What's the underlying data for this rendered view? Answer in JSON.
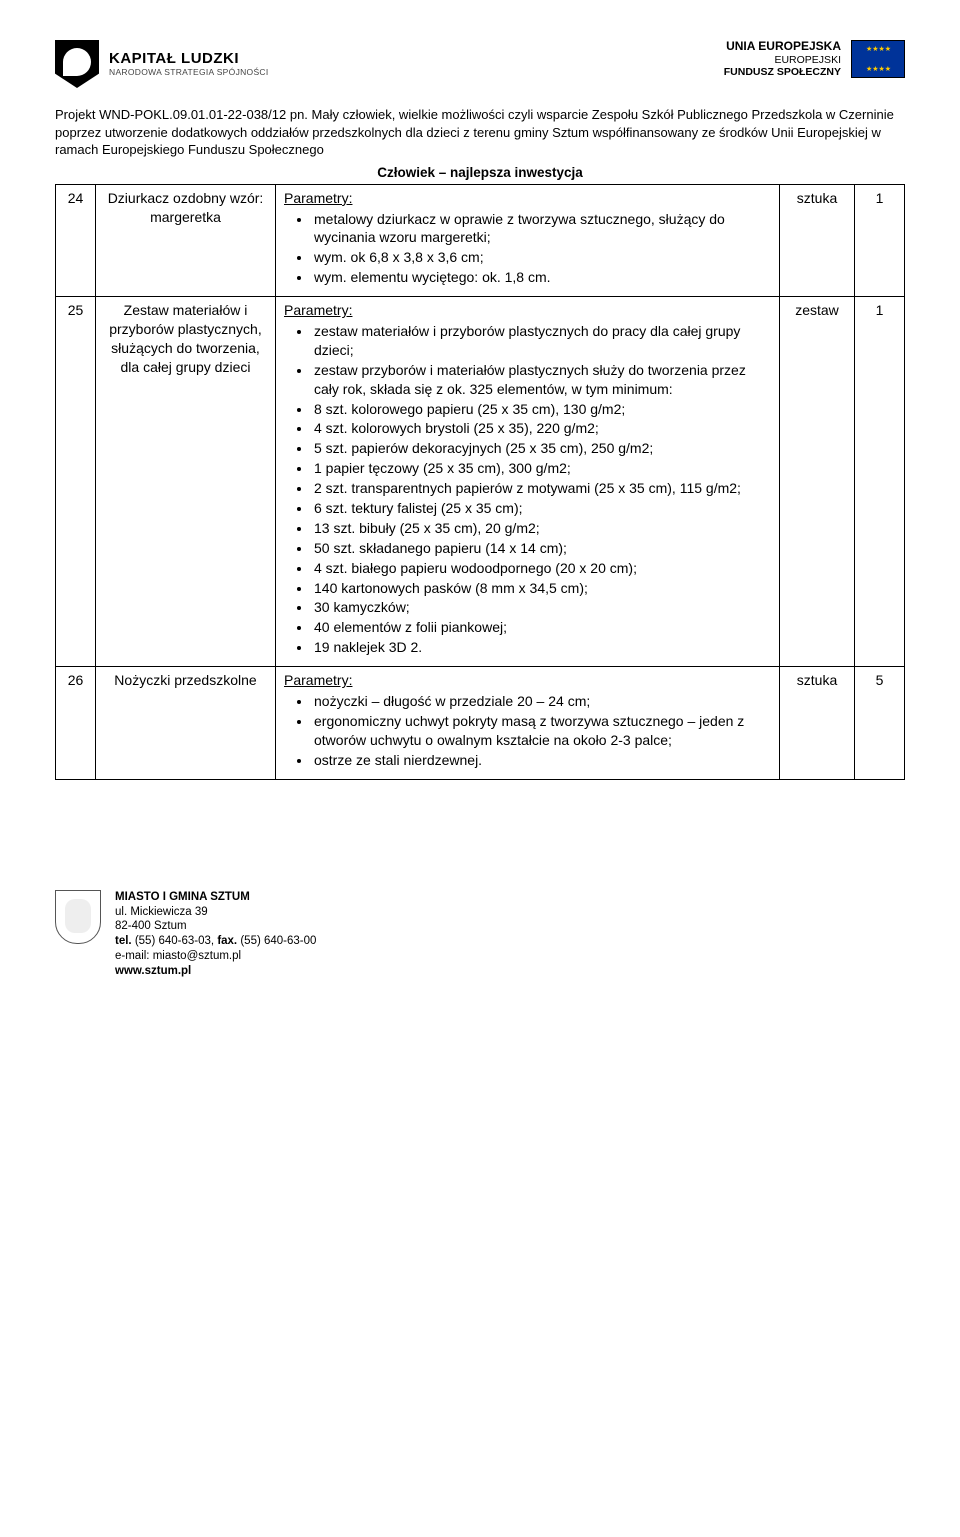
{
  "header": {
    "left": {
      "title": "KAPITAŁ LUDZKI",
      "subtitle": "NARODOWA STRATEGIA SPÓJNOŚCI"
    },
    "right": {
      "line1": "UNIA EUROPEJSKA",
      "line2": "EUROPEJSKI",
      "line3": "FUNDUSZ SPOŁECZNY"
    }
  },
  "intro": {
    "text": "Projekt WND-POKL.09.01.01-22-038/12 pn. Mały człowiek, wielkie możliwości czyli wsparcie Zespołu Szkół Publicznego Przedszkola w Czerninie poprzez utworzenie dodatkowych oddziałów przedszkolnych dla dzieci z terenu gminy Sztum współfinansowany ze środków Unii Europejskiej w ramach Europejskiego Funduszu Społecznego"
  },
  "motto": "Człowiek – najlepsza inwestycja",
  "param_label": "Parametry:",
  "rows": [
    {
      "num": "24",
      "name": "Dziurkacz ozdobny wzór: margeretka",
      "unit": "sztuka",
      "qty": "1",
      "items": [
        "metalowy dziurkacz w oprawie z tworzywa sztucznego, służący do wycinania wzoru margeretki;",
        "wym. ok  6,8 x 3,8 x 3,6 cm;",
        "wym. elementu  wyciętego: ok. 1,8 cm."
      ]
    },
    {
      "num": "25",
      "name": "Zestaw materiałów i przyborów plastycznych, służących do tworzenia, dla całej grupy dzieci",
      "unit": "zestaw",
      "qty": "1",
      "items": [
        "zestaw materiałów i przyborów plastycznych do pracy dla całej grupy dzieci;",
        "zestaw przyborów i materiałów plastycznych służy do tworzenia przez cały rok, składa się z ok. 325  elementów, w tym minimum:",
        "8 szt. kolorowego papieru (25 x 35 cm), 130 g/m2;",
        "4 szt. kolorowych brystoli (25 x 35), 220 g/m2;",
        "5 szt. papierów dekoracyjnych (25 x 35 cm), 250 g/m2;",
        "1 papier tęczowy (25 x 35 cm), 300 g/m2;",
        "2 szt. transparentnych papierów z motywami (25 x 35 cm), 115 g/m2;",
        "6 szt. tektury falistej (25 x 35 cm);",
        "13 szt. bibuły (25 x 35 cm), 20 g/m2;",
        "50 szt. składanego papieru (14 x 14 cm);",
        "4 szt. białego papieru wodoodpornego (20 x 20 cm);",
        "140 kartonowych pasków (8 mm x 34,5 cm);",
        "30 kamyczków;",
        "40 elementów z folii piankowej;",
        "19 naklejek 3D 2."
      ]
    },
    {
      "num": "26",
      "name": "Nożyczki przedszkolne",
      "unit": "sztuka",
      "qty": "5",
      "items": [
        "nożyczki – długość w przedziale 20 – 24 cm;",
        "ergonomiczny uchwyt pokryty masą z tworzywa sztucznego – jeden z otworów uchwytu o owalnym kształcie na około 2-3 palce;",
        "ostrze ze stali nierdzewnej."
      ]
    }
  ],
  "footer": {
    "org": "MIASTO  I  GMINA  SZTUM",
    "addr1": "ul. Mickiewicza 39",
    "addr2": "82-400  Sztum",
    "tel_label": "tel.",
    "tel": "(55) 640-63-03,",
    "fax_label": "fax.",
    "fax": "(55) 640-63-00",
    "email": "e-mail:  miasto@sztum.pl",
    "www": "www.sztum.pl"
  }
}
